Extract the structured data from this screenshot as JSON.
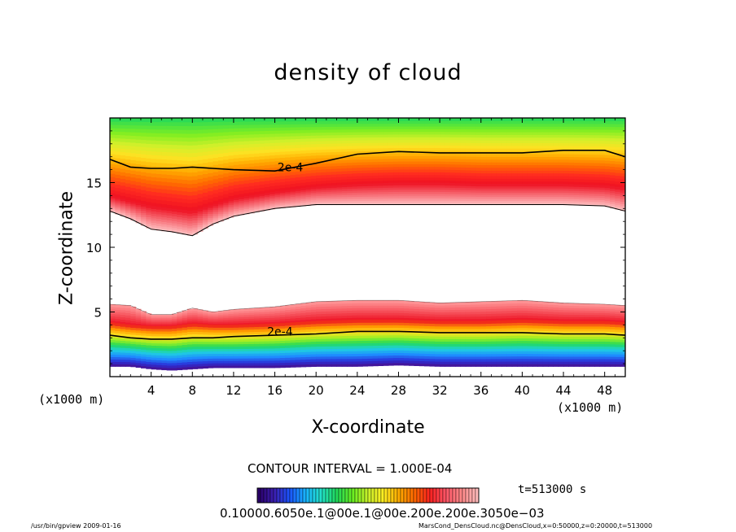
{
  "chart_data": {
    "type": "heatmap",
    "title": "density of cloud",
    "xlabel": "X-coordinate",
    "ylabel": "Z-coordinate",
    "x_unit_label": "(×1000 m)",
    "y_unit_label": "(×1000 m)",
    "xlim": [
      0,
      50
    ],
    "ylim": [
      0,
      20
    ],
    "x_ticks": [
      4,
      8,
      12,
      16,
      20,
      24,
      28,
      32,
      36,
      40,
      44,
      48
    ],
    "y_ticks": [
      5,
      10,
      15
    ],
    "contour_labels": [
      {
        "text": "2e-4",
        "x": 17.5,
        "z": 16.0
      },
      {
        "text": "2e-4",
        "x": 16.5,
        "z": 3.3
      }
    ],
    "upper_layer": {
      "x": [
        0,
        2,
        4,
        6,
        8,
        10,
        12,
        16,
        20,
        24,
        28,
        32,
        36,
        40,
        44,
        48,
        50
      ],
      "bottom_z": [
        12.8,
        12.2,
        11.4,
        11.2,
        10.9,
        11.8,
        12.4,
        13.0,
        13.3,
        13.3,
        13.3,
        13.3,
        13.3,
        13.3,
        13.3,
        13.2,
        12.8
      ],
      "peak_z": [
        14.0,
        13.6,
        13.2,
        13.0,
        12.8,
        13.3,
        13.8,
        14.3,
        14.7,
        14.9,
        15.0,
        15.0,
        14.9,
        14.9,
        14.9,
        14.8,
        14.6
      ],
      "contour_2e4_z": [
        16.8,
        16.2,
        16.1,
        16.1,
        16.2,
        16.1,
        16.0,
        15.9,
        16.5,
        17.2,
        17.4,
        17.3,
        17.3,
        17.3,
        17.5,
        17.5,
        17.0
      ]
    },
    "lower_layer": {
      "x": [
        0,
        2,
        4,
        6,
        8,
        10,
        12,
        16,
        20,
        24,
        28,
        32,
        36,
        40,
        44,
        48,
        50
      ],
      "top_z": [
        5.6,
        5.5,
        4.8,
        4.8,
        5.3,
        5.0,
        5.2,
        5.4,
        5.8,
        5.9,
        5.9,
        5.7,
        5.8,
        5.9,
        5.7,
        5.6,
        5.5
      ],
      "peak_z": [
        4.2,
        4.0,
        3.9,
        3.9,
        4.1,
        4.0,
        4.0,
        4.1,
        4.3,
        4.4,
        4.4,
        4.3,
        4.3,
        4.4,
        4.3,
        4.3,
        4.2
      ],
      "contour_2e4_z": [
        3.2,
        3.0,
        2.9,
        2.9,
        3.0,
        3.0,
        3.1,
        3.2,
        3.3,
        3.5,
        3.5,
        3.4,
        3.4,
        3.4,
        3.3,
        3.3,
        3.2
      ],
      "bottom_z": [
        0.8,
        0.8,
        0.6,
        0.5,
        0.6,
        0.7,
        0.7,
        0.7,
        0.8,
        0.8,
        0.9,
        0.8,
        0.8,
        0.8,
        0.8,
        0.8,
        0.8
      ]
    },
    "top_band_value": "low (green)",
    "colorbar": {
      "min": 0.1,
      "max": 0.7,
      "labels_text": "0.10000.6050e.1@00e.1@00e.200e.200e.3050e−03",
      "palette": [
        "#2a006a",
        "#3b1fb0",
        "#1a55ff",
        "#19b4ff",
        "#22e0c8",
        "#21d95a",
        "#66ee22",
        "#c8f02a",
        "#ffee22",
        "#ffaa00",
        "#ff6600",
        "#ff2222",
        "#ff5566",
        "#ff8888",
        "#ffbbbb"
      ]
    }
  },
  "labels": {
    "title": "density of cloud",
    "xlabel": "X-coordinate",
    "ylabel": "Z-coordinate",
    "unit_left": "(x1000 m)",
    "unit_right": "(x1000 m)",
    "contour_interval": "CONTOUR INTERVAL = 1.000E-04",
    "time": "t=513000 s",
    "scale_labels": "0.10000.6050e.1@00e.1@00e.200e.200e.3050e−03",
    "footer_left": "/usr/bin/gpview  2009-01-16",
    "footer_right": "MarsCond_DensCloud.nc@DensCloud,x=0:50000,z=0:20000,t=513000"
  },
  "colors": {
    "axis": "#000000",
    "background": "#ffffff"
  }
}
